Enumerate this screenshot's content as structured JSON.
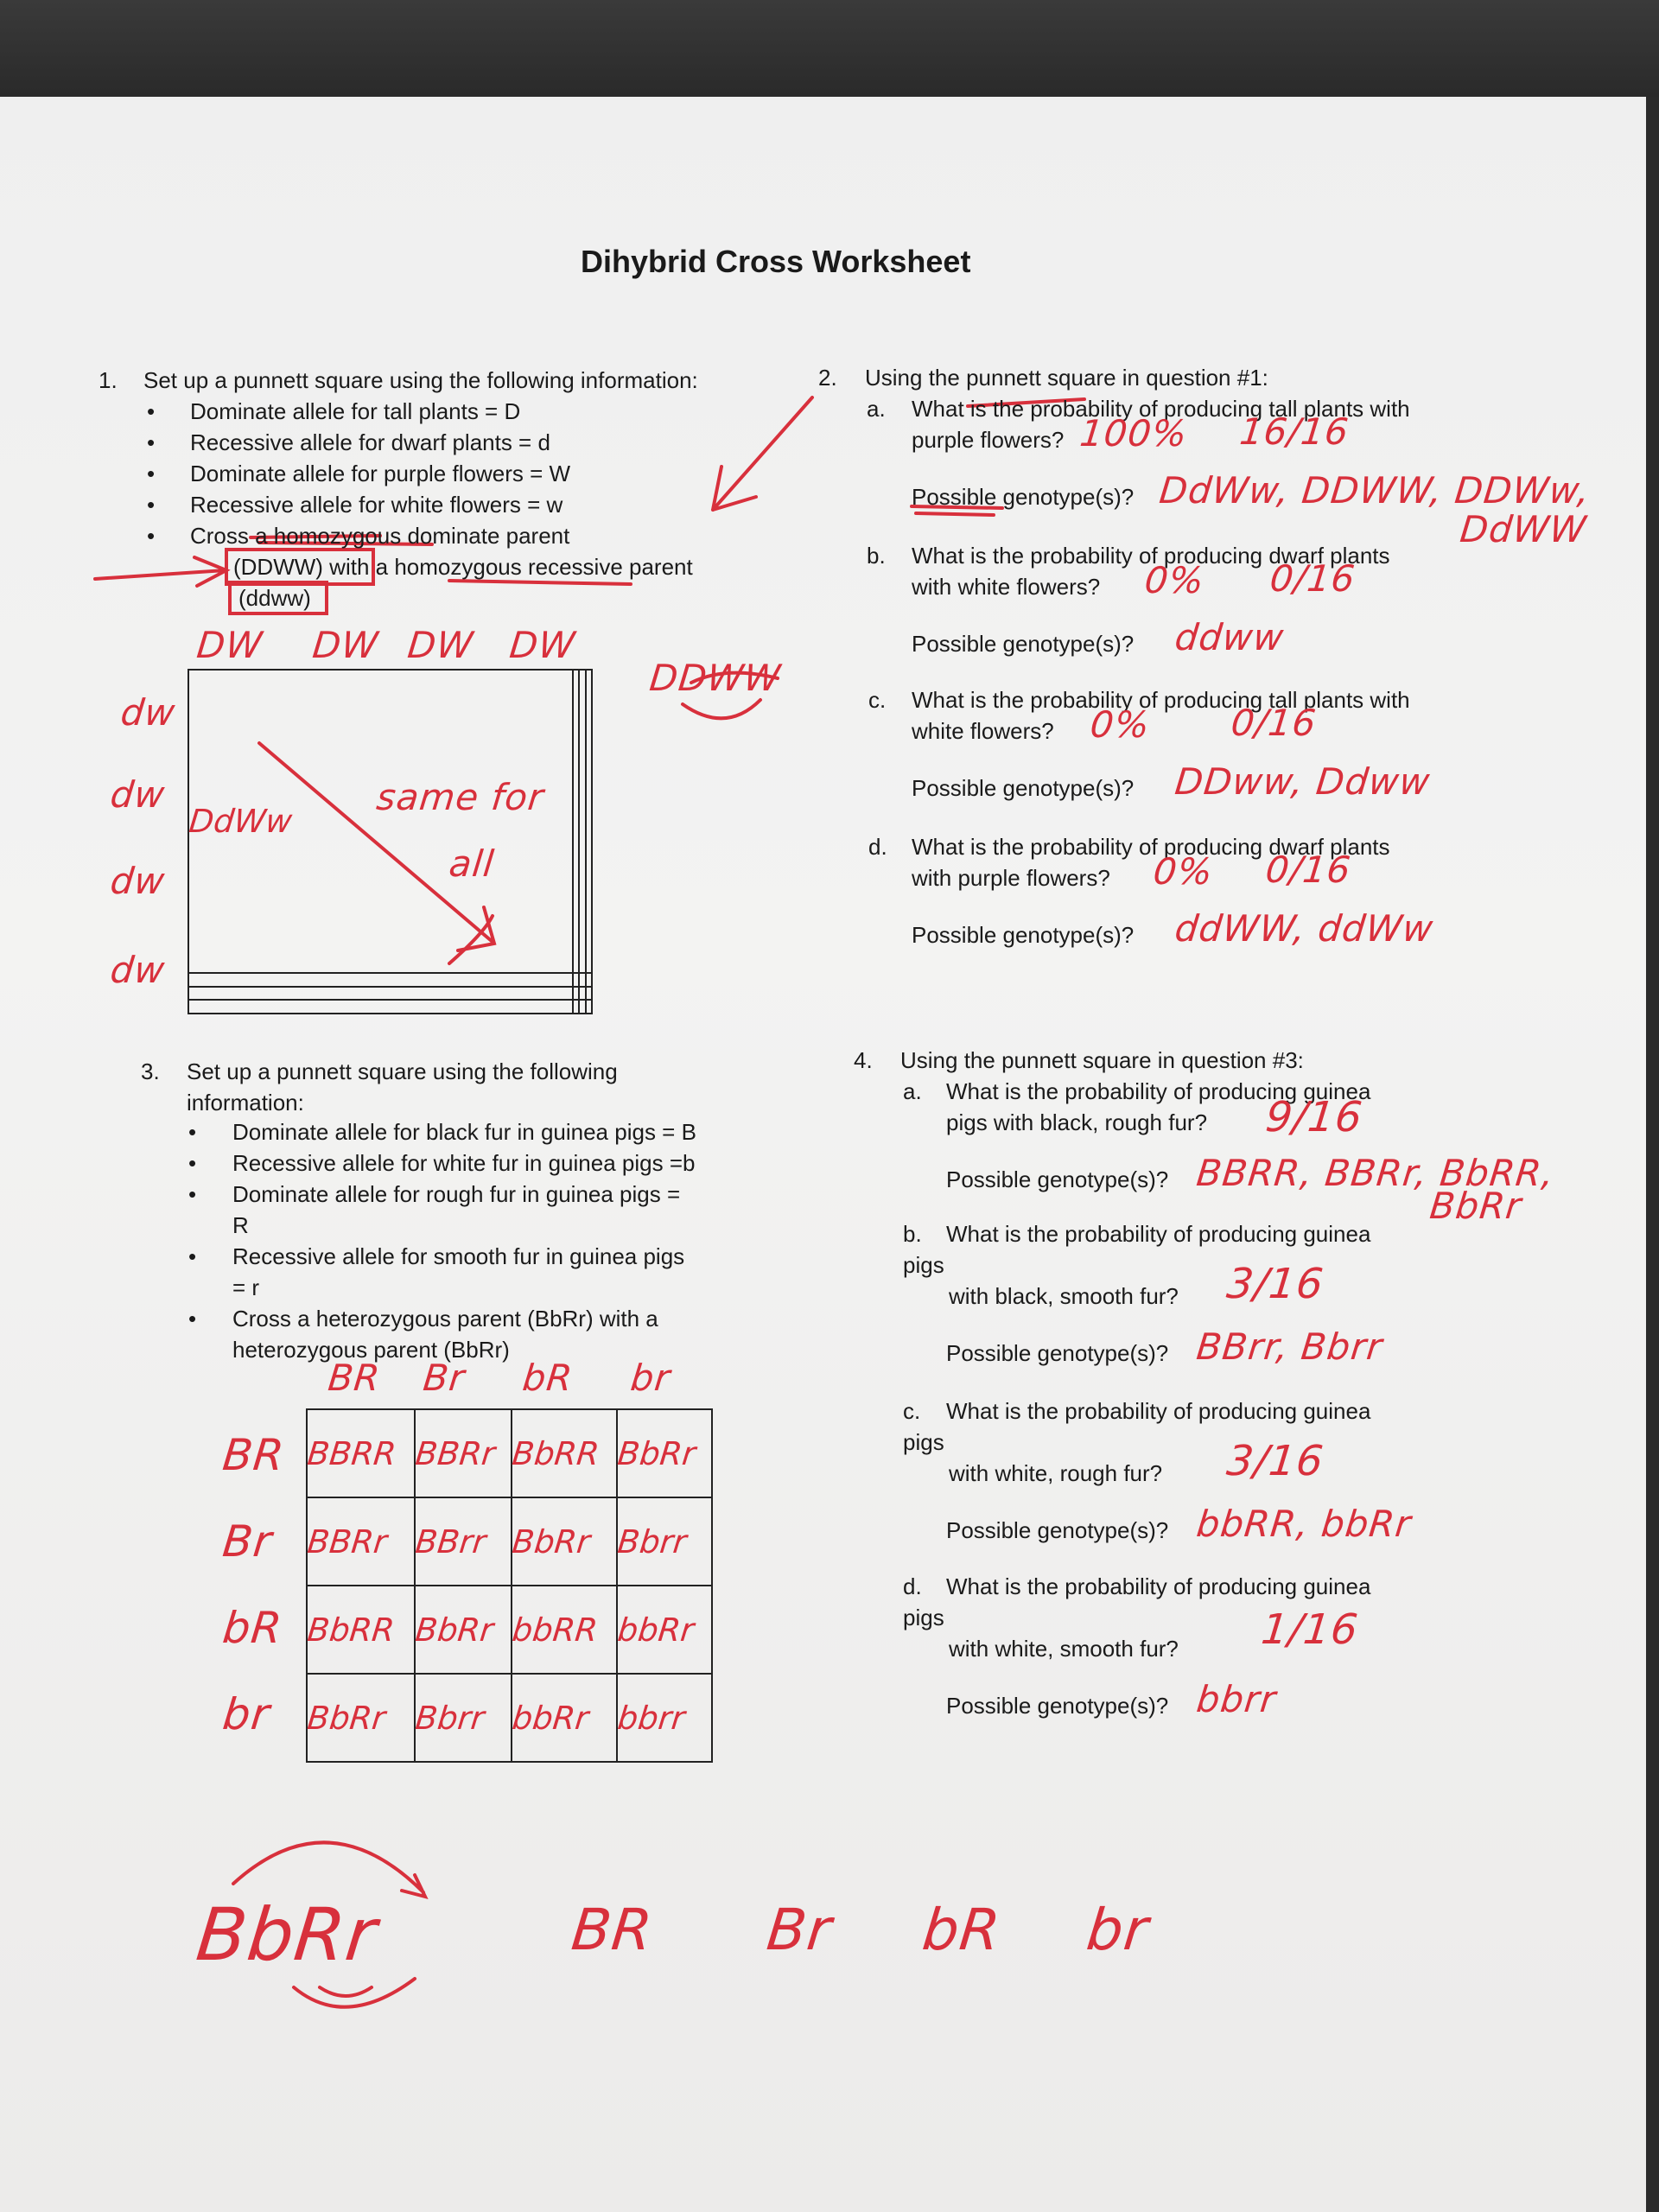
{
  "title": "Dihybrid Cross Worksheet",
  "q1": {
    "num": "1.",
    "text": "Set up a punnett square using the following information:",
    "bullets": [
      "Dominate allele for tall plants = D",
      "Recessive allele for dwarf plants = d",
      "Dominate allele for purple flowers = W",
      "Recessive allele for white flowers = w",
      "Cross a homozygous dominate parent"
    ],
    "cont1": "(DDWW) with a homozygous recessive parent",
    "cont2": "(ddww)",
    "hand": {
      "cols": [
        "DW",
        "DW",
        "DW",
        "DW"
      ],
      "rows": [
        "dw",
        "dw",
        "dw",
        "dw"
      ],
      "cell": "DdWw",
      "note1": "same for",
      "note2": "all",
      "parent": "DDWW"
    }
  },
  "q2": {
    "num": "2.",
    "intro": "Using the punnett square in question #1:",
    "parts": [
      {
        "letter": "a.",
        "line1": "What is the probability of producing tall plants with",
        "line2": "purple flowers?",
        "ans1": "100%",
        "ans2": "16/16",
        "geno_label": "Possible genotype(s)?",
        "geno": "DdWw, DDWW, DDWw,",
        "geno2": "DdWW"
      },
      {
        "letter": "b.",
        "line1": "What is the probability of producing dwarf plants",
        "line2": "with white flowers?",
        "ans1": "0%",
        "ans2": "0/16",
        "geno_label": "Possible genotype(s)?",
        "geno": "ddww"
      },
      {
        "letter": "c.",
        "line1": "What is the probability of producing tall plants with",
        "line2": "white flowers?",
        "ans1": "0%",
        "ans2": "0/16",
        "geno_label": "Possible genotype(s)?",
        "geno": "DDww, Ddww"
      },
      {
        "letter": "d.",
        "line1": "What is the probability of producing dwarf plants",
        "line2": "with purple flowers?",
        "ans1": "0%",
        "ans2": "0/16",
        "geno_label": "Possible genotype(s)?",
        "geno": "ddWW, ddWw"
      }
    ]
  },
  "q3": {
    "num": "3.",
    "line1": "Set up a punnett square using the following",
    "line2": "information:",
    "bullets": [
      [
        "Dominate allele for black fur in guinea pigs = B"
      ],
      [
        "Recessive allele for white fur in guinea pigs =b"
      ],
      [
        "Dominate allele for rough fur in guinea pigs =",
        "R"
      ],
      [
        "Recessive allele for smooth fur in guinea pigs",
        "= r"
      ],
      [
        "Cross a heterozygous parent (BbRr) with a",
        "heterozygous parent (BbRr)"
      ]
    ],
    "hand": {
      "cols": [
        "BR",
        "Br",
        "bR",
        "br"
      ],
      "rows": [
        "BR",
        "Br",
        "bR",
        "br"
      ],
      "cells": [
        [
          "BBRR",
          "BBRr",
          "BbRR",
          "BbRr"
        ],
        [
          "BBRr",
          "BBrr",
          "BbRr",
          "Bbrr"
        ],
        [
          "BbRR",
          "BbRr",
          "bbRR",
          "bbRr"
        ],
        [
          "BbRr",
          "Bbrr",
          "bbRr",
          "bbrr"
        ]
      ],
      "bottom_parent": "BbRr",
      "bottom_gametes": [
        "BR",
        "Br",
        "bR",
        "br"
      ]
    }
  },
  "q4": {
    "num": "4.",
    "intro": "Using the punnett square in question #3:",
    "parts": [
      {
        "letter": "a.",
        "line1": "What is the probability of producing guinea",
        "line2": "pigs with black, rough fur?",
        "ans": "9/16",
        "geno_label": "Possible genotype(s)?",
        "geno": "BBRR, BBRr, BbRR,",
        "geno2": "BbRr"
      },
      {
        "letter": "b.",
        "line1": "What is the probability of producing guinea",
        "pigs": "pigs",
        "line2": "with black, smooth fur?",
        "ans": "3/16",
        "geno_label": "Possible genotype(s)?",
        "geno": "BBrr, Bbrr"
      },
      {
        "letter": "c.",
        "line1": "What is the probability of producing guinea",
        "pigs": "pigs",
        "line2": "with white, rough fur?",
        "ans": "3/16",
        "geno_label": "Possible genotype(s)?",
        "geno": "bbRR, bbRr"
      },
      {
        "letter": "d.",
        "line1": "What is the probability of producing guinea",
        "pigs": "pigs",
        "line2": "with white, smooth fur?",
        "ans": "1/16",
        "geno_label": "Possible genotype(s)?",
        "geno": "bbrr"
      }
    ]
  },
  "colors": {
    "ink": "#d8303c",
    "text": "#1a1a1a",
    "paper": "#efefef"
  }
}
